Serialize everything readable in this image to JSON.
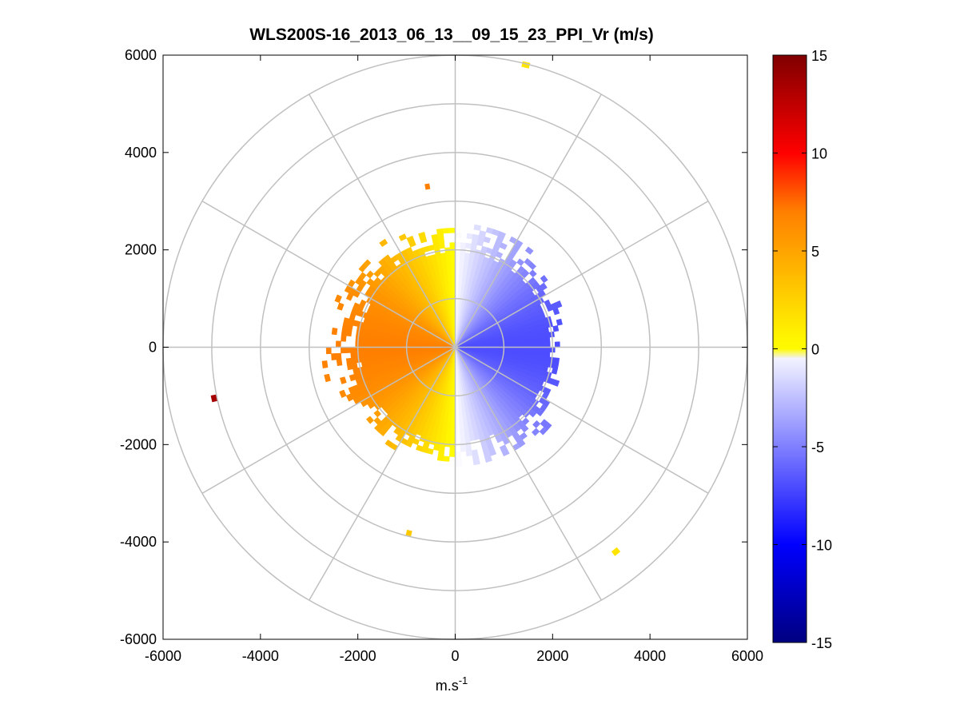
{
  "chart_data": {
    "type": "heatmap",
    "subtype": "polar-ppi",
    "title": "WLS200S-16_2013_06_13__09_15_23_PPI_Vr (m/s)",
    "xlabel_base": "m.s",
    "xlabel_exp": "-1",
    "xlim": [
      -6000,
      6000
    ],
    "ylim": [
      -6000,
      6000
    ],
    "xticks": [
      -6000,
      -4000,
      -2000,
      0,
      2000,
      4000,
      6000
    ],
    "yticks": [
      -6000,
      -4000,
      -2000,
      0,
      2000,
      4000,
      6000
    ],
    "xtick_labels": [
      "-6000",
      "-4000",
      "-2000",
      "0",
      "2000",
      "4000",
      "6000"
    ],
    "ytick_labels": [
      "6000",
      "4000",
      "2000",
      "0",
      "-2000",
      "-4000",
      "-6000"
    ],
    "polar_grid": {
      "rings": [
        1000,
        2000,
        3000,
        4000,
        5000,
        6000
      ],
      "spokes_deg": [
        0,
        30,
        60,
        90,
        120,
        150,
        180,
        210,
        240,
        270,
        300,
        330
      ]
    },
    "range_gate_m": 100,
    "azimuth_step_deg": 3,
    "field": {
      "description": "radial velocity Vr = -amplitude * sin(azimuth), azimuth clockwise from north",
      "amplitude": 7,
      "sector_extent_m": [
        {
          "az_from": 0,
          "az_to": 40,
          "max_range": 2600
        },
        {
          "az_from": 40,
          "az_to": 80,
          "max_range": 2300
        },
        {
          "az_from": 80,
          "az_to": 120,
          "max_range": 2200
        },
        {
          "az_from": 120,
          "az_to": 180,
          "max_range": 2500
        },
        {
          "az_from": 180,
          "az_to": 240,
          "max_range": 2400
        },
        {
          "az_from": 240,
          "az_to": 300,
          "max_range": 2700
        },
        {
          "az_from": 300,
          "az_to": 360,
          "max_range": 2600
        }
      ]
    },
    "isolated_returns": [
      {
        "x": 1450,
        "y": 5800,
        "vr": 1.5
      },
      {
        "x": -570,
        "y": 3300,
        "vr": 7
      },
      {
        "x": -4950,
        "y": -1050,
        "vr": 13.5
      },
      {
        "x": -950,
        "y": -3820,
        "vr": 3
      },
      {
        "x": 3300,
        "y": -4200,
        "vr": 1.5
      }
    ],
    "colorbar": {
      "clim": [
        -15,
        15
      ],
      "ticks": [
        15,
        10,
        5,
        0,
        -5,
        -10,
        -15
      ],
      "tick_labels": [
        "15",
        "10",
        "5",
        "0",
        "-5",
        "-10",
        "-15"
      ],
      "colors": {
        "dark_blue": "#000080",
        "blue": "#0000ff",
        "white": "#ffffff",
        "yellow": "#ffff00",
        "orange": "#ff8000",
        "red": "#ff0000",
        "dark_red": "#800000"
      }
    }
  }
}
